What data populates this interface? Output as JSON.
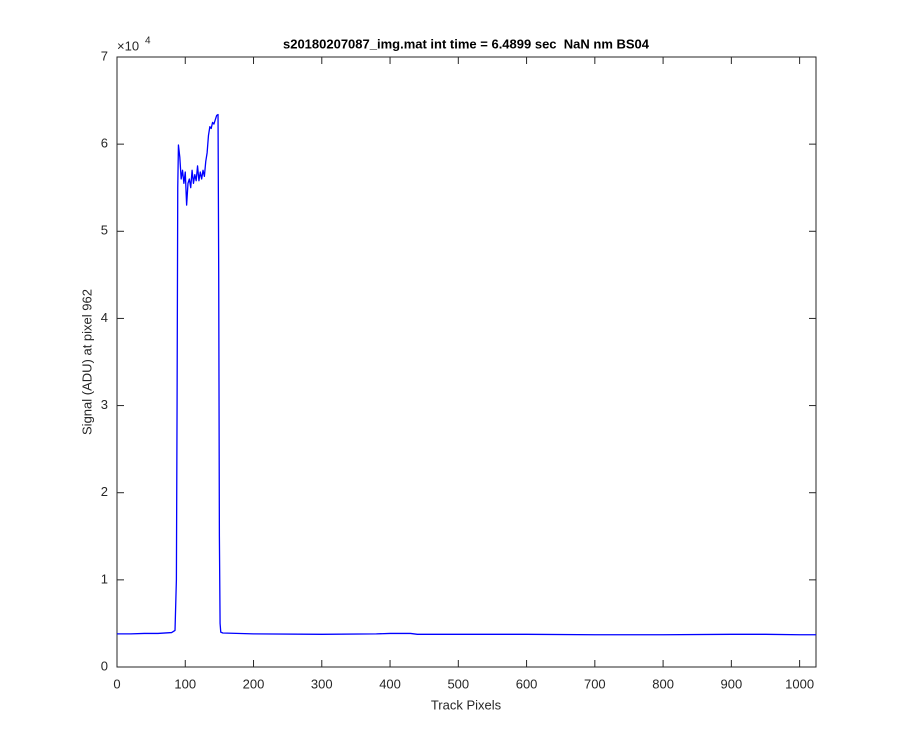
{
  "chart_data": {
    "type": "line",
    "title": "s20180207087_img.mat int time = 6.4899 sec  NaN nm BS04",
    "x_label": "Track Pixels",
    "y_label": "Signal (ADU) at pixel 962",
    "y_exponent_base": "×10",
    "y_exponent_power": "4",
    "xlim": [
      0,
      1024
    ],
    "xticks": [
      0,
      100,
      200,
      300,
      400,
      500,
      600,
      700,
      800,
      900,
      1000
    ],
    "ylim": [
      0,
      70000
    ],
    "yticks": [
      {
        "value": 0,
        "label": "0"
      },
      {
        "value": 10000,
        "label": "1"
      },
      {
        "value": 20000,
        "label": "2"
      },
      {
        "value": 30000,
        "label": "3"
      },
      {
        "value": 40000,
        "label": "4"
      },
      {
        "value": 50000,
        "label": "5"
      },
      {
        "value": 60000,
        "label": "6"
      },
      {
        "value": 70000,
        "label": "7"
      }
    ],
    "grid": false,
    "series": [
      {
        "color": "#0000ff",
        "x": [
          0,
          20,
          40,
          60,
          80,
          85,
          87,
          88,
          89,
          90,
          92,
          94,
          96,
          98,
          100,
          102,
          104,
          106,
          108,
          110,
          112,
          114,
          116,
          118,
          120,
          122,
          124,
          126,
          128,
          130,
          132,
          134,
          136,
          138,
          140,
          142,
          144,
          146,
          148,
          149,
          150,
          151,
          152,
          155,
          200,
          300,
          380,
          400,
          430,
          440,
          500,
          600,
          700,
          800,
          900,
          950,
          1000,
          1024
        ],
        "values": [
          3800,
          3800,
          3850,
          3850,
          3950,
          4200,
          10000,
          30000,
          55000,
          59900,
          58500,
          56000,
          57000,
          55500,
          56800,
          53000,
          55500,
          56000,
          55000,
          57000,
          55500,
          56500,
          55800,
          57500,
          55800,
          56800,
          56000,
          57000,
          56300,
          58000,
          59000,
          61000,
          62000,
          61800,
          62500,
          62300,
          62800,
          63300,
          63400,
          45000,
          15000,
          5000,
          4000,
          3900,
          3800,
          3750,
          3800,
          3850,
          3850,
          3750,
          3750,
          3750,
          3700,
          3700,
          3750,
          3750,
          3700,
          3700
        ]
      }
    ]
  }
}
